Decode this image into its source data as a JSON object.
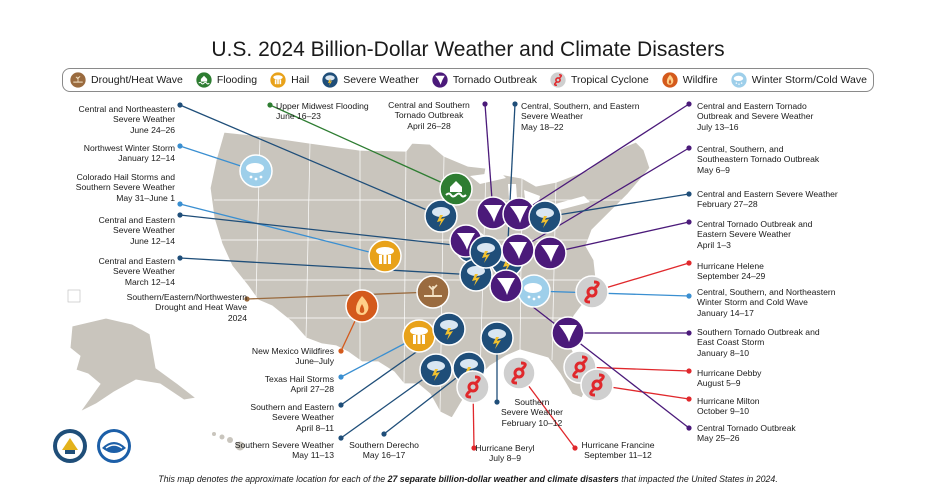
{
  "title": "U.S. 2024 Billion-Dollar Weather and Climate Disasters",
  "legend": [
    {
      "key": "drought",
      "label": "Drought/Heat Wave",
      "color": "#9a6b3f"
    },
    {
      "key": "flood",
      "label": "Flooding",
      "color": "#2e7d32"
    },
    {
      "key": "hail",
      "label": "Hail",
      "color": "#e8a21a"
    },
    {
      "key": "severe",
      "label": "Severe Weather",
      "color": "#1f4e79"
    },
    {
      "key": "tornado",
      "label": "Tornado Outbreak",
      "color": "#4b1a7a"
    },
    {
      "key": "cyclone",
      "label": "Tropical Cyclone",
      "color": "#cfcfcf"
    },
    {
      "key": "wildfire",
      "label": "Wildfire",
      "color": "#d45a1c"
    },
    {
      "key": "winter",
      "label": "Winter Storm/Cold Wave",
      "color": "#9ecfea"
    }
  ],
  "events": [
    {
      "id": "e1",
      "text": "Central and Northeastern\nSevere Weather\nJune 24–26"
    },
    {
      "id": "e2",
      "text": "Northwest Winter Storm\nJanuary 12–14"
    },
    {
      "id": "e3",
      "text": "Colorado Hail Storms and\nSouthern Severe Weather\nMay 31–June 1"
    },
    {
      "id": "e4",
      "text": "Central and Eastern\nSevere Weather\nJune 12–14"
    },
    {
      "id": "e5",
      "text": "Central and Eastern\nSevere Weather\nMarch 12–14"
    },
    {
      "id": "e6",
      "text": "Southern/Eastern/Northwestern\nDrought and Heat Wave\n2024"
    },
    {
      "id": "e7",
      "text": "New Mexico Wildfires\nJune–July"
    },
    {
      "id": "e8",
      "text": "Texas Hail Storms\nApril 27–28"
    },
    {
      "id": "e9",
      "text": "Southern and Eastern\nSevere Weather\nApril 8–11"
    },
    {
      "id": "e10",
      "text": "Southern Severe Weather\nMay 11–13"
    },
    {
      "id": "e11",
      "text": "Southern Derecho\nMay 16–17"
    },
    {
      "id": "e12",
      "text": "Hurricane Beryl\nJuly 8–9"
    },
    {
      "id": "e13",
      "text": "Southern\nSevere Weather\nFebruary 10–12"
    },
    {
      "id": "e14",
      "text": "Hurricane Francine\nSeptember 11–12"
    },
    {
      "id": "e15",
      "text": "Upper Midwest Flooding\nJune 16–23"
    },
    {
      "id": "e16",
      "text": "Central and Southern\nTornado Outbreak\nApril 26–28"
    },
    {
      "id": "e17",
      "text": "Central, Southern, and Eastern\nSevere Weather\nMay 18–22"
    },
    {
      "id": "e18",
      "text": "Central and Eastern Tornado\nOutbreak and Severe Weather\nJuly 13–16"
    },
    {
      "id": "e19",
      "text": "Central, Southern, and\nSoutheastern Tornado Outbreak\nMay 6–9"
    },
    {
      "id": "e20",
      "text": "Central and Eastern Severe Weather\nFebruary 27–28"
    },
    {
      "id": "e21",
      "text": "Central Tornado Outbreak and\nEastern Severe Weather\nApril 1–3"
    },
    {
      "id": "e22",
      "text": "Hurricane Helene\nSeptember 24–29"
    },
    {
      "id": "e23",
      "text": "Central, Southern, and Northeastern\nWinter Storm and Cold Wave\nJanuary 14–17"
    },
    {
      "id": "e24",
      "text": "Southern Tornado Outbreak and\nEast Coast Storm\nJanuary 8–10"
    },
    {
      "id": "e25",
      "text": "Hurricane Debby\nAugust 5–9"
    },
    {
      "id": "e26",
      "text": "Hurricane Milton\nOctober 9–10"
    },
    {
      "id": "e27",
      "text": "Central Tornado Outbreak\nMay 25–26"
    }
  ],
  "footer": {
    "pre": "This map denotes the approximate location for each of the ",
    "bold": "27 separate billion-dollar weather and climate disasters",
    "post": " that impacted the United States in 2024."
  },
  "seals": [
    {
      "name": "doc-seal",
      "label": "DOC"
    },
    {
      "name": "noaa-logo",
      "label": "NOAA"
    }
  ]
}
